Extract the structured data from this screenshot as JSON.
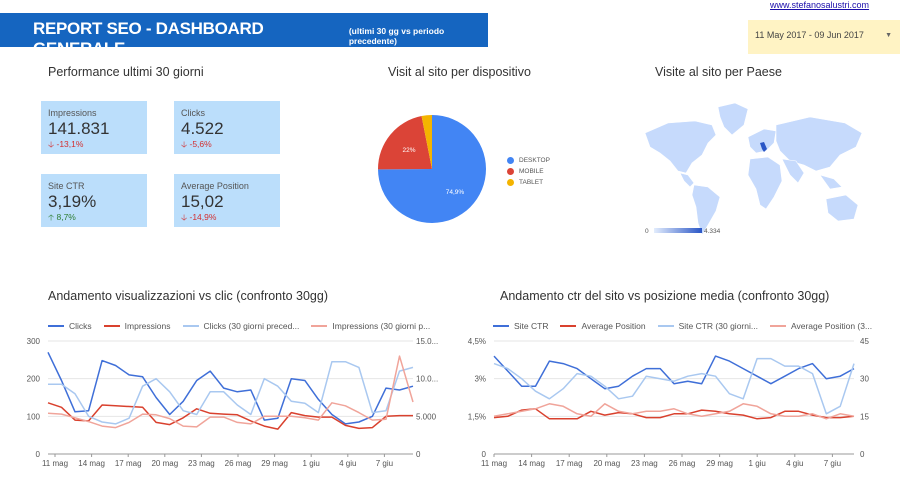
{
  "header": {
    "title": "REPORT SEO - DASHBOARD GENERALE",
    "subtitle": "(ultimi 30 gg vs periodo precedente)"
  },
  "site_link": "www.stefanosalustri.com",
  "date_range": "11 May 2017 - 09 Jun 2017",
  "sections": {
    "performance": "Performance ultimi 30 giorni",
    "device": "Visit al sito per dispositivo",
    "country": "Visite al sito per Paese",
    "trend1": "Andamento visualizzazioni vs clic (confronto 30gg)",
    "trend2": "Andamento ctr del sito vs posizione media (confronto 30gg)"
  },
  "scorecards": [
    {
      "label": "Impressions",
      "value": "141.831",
      "change": "-13,1%",
      "trend": "down"
    },
    {
      "label": "Clicks",
      "value": "4.522",
      "change": "-5,6%",
      "trend": "down"
    },
    {
      "label": "Site CTR",
      "value": "3,19%",
      "change": "8,7%",
      "trend": "up"
    },
    {
      "label": "Average Position",
      "value": "15,02",
      "change": "-14,9%",
      "trend": "down"
    }
  ],
  "colors": {
    "header": "#1565c0",
    "card": "#bbdefb",
    "blue": "#3f6fd8",
    "red": "#d9412e",
    "light_blue": "#a9c8f0",
    "light_red": "#f0a49a",
    "yellow": "#f4b400"
  },
  "pie": {
    "chart_data": {
      "type": "pie",
      "slices": [
        {
          "label": "DESKTOP",
          "value": 74.9,
          "display": "74,9%",
          "color": "#4285f4"
        },
        {
          "label": "MOBILE",
          "value": 22,
          "display": "22%",
          "color": "#db4437"
        },
        {
          "label": "TABLET",
          "value": 3.1,
          "display": "",
          "color": "#f4b400"
        }
      ]
    }
  },
  "map": {
    "scale_min": "0",
    "scale_max": "4.334"
  },
  "trend1": {
    "chart_data": {
      "type": "line",
      "x_ticks": [
        "11 mag",
        "14 mag",
        "17 mag",
        "20 mag",
        "23 mag",
        "26 mag",
        "29 mag",
        "1 giu",
        "4 giu",
        "7 giu"
      ],
      "y_left_ticks": [
        "300",
        "200",
        "100",
        "0"
      ],
      "y_right_ticks": [
        "15.0...",
        "10.0...",
        "5.000",
        "0"
      ],
      "ylim_left": [
        0,
        300
      ],
      "ylim_right": [
        0,
        15000
      ],
      "series": [
        {
          "name": "Clicks",
          "axis": "left",
          "color": "#3f6fd8",
          "dash": false,
          "values": [
            270,
            195,
            112,
            115,
            248,
            235,
            210,
            205,
            150,
            105,
            140,
            195,
            220,
            175,
            165,
            170,
            90,
            95,
            200,
            195,
            145,
            105,
            80,
            85,
            100,
            175,
            170,
            180
          ]
        },
        {
          "name": "Impressions",
          "axis": "right",
          "color": "#d9412e",
          "dash": false,
          "values": [
            6800,
            6200,
            4500,
            4400,
            6500,
            6400,
            6300,
            6200,
            4200,
            3900,
            4800,
            6000,
            5400,
            5300,
            5200,
            4400,
            3700,
            3300,
            5500,
            5100,
            4900,
            4900,
            3800,
            3400,
            3500,
            5000,
            5100,
            5100
          ]
        },
        {
          "name": "Clicks (30 giorni preced...",
          "axis": "left",
          "color": "#a9c8f0",
          "dash": false,
          "values": [
            185,
            185,
            160,
            100,
            85,
            80,
            95,
            180,
            200,
            165,
            115,
            105,
            165,
            165,
            130,
            105,
            200,
            180,
            140,
            135,
            110,
            245,
            245,
            230,
            110,
            115,
            220,
            230
          ]
        },
        {
          "name": "Impressions (30 giorni p...",
          "axis": "right",
          "color": "#f0a49a",
          "dash": false,
          "values": [
            5400,
            5300,
            4800,
            4300,
            3700,
            3500,
            4200,
            5300,
            5200,
            4700,
            3700,
            3600,
            4900,
            4900,
            4200,
            4000,
            5000,
            5000,
            5000,
            4800,
            4500,
            6800,
            6400,
            5500,
            4500,
            4600,
            13000,
            6900
          ]
        }
      ]
    }
  },
  "trend2": {
    "chart_data": {
      "type": "line",
      "x_ticks": [
        "11 mag",
        "14 mag",
        "17 mag",
        "20 mag",
        "23 mag",
        "26 mag",
        "29 mag",
        "1 giu",
        "4 giu",
        "7 giu"
      ],
      "y_left_ticks": [
        "4,5%",
        "3%",
        "1,5%",
        "0"
      ],
      "y_right_ticks": [
        "45",
        "30",
        "15",
        "0"
      ],
      "ylim_left": [
        0,
        4.5
      ],
      "ylim_right": [
        0,
        45
      ],
      "series": [
        {
          "name": "Site CTR",
          "axis": "left",
          "color": "#3f6fd8",
          "dash": false,
          "values": [
            3.9,
            3.3,
            2.7,
            2.7,
            3.7,
            3.6,
            3.4,
            3.0,
            2.6,
            2.7,
            3.1,
            3.4,
            3.4,
            2.8,
            2.9,
            2.8,
            3.9,
            3.7,
            3.4,
            3.1,
            2.8,
            3.1,
            3.4,
            3.6,
            3.0,
            3.1,
            3.4
          ]
        },
        {
          "name": "Average Position",
          "axis": "left",
          "color": "#d9412e",
          "dash": false,
          "values": [
            1.45,
            1.5,
            1.75,
            1.8,
            1.4,
            1.4,
            1.4,
            1.7,
            1.55,
            1.65,
            1.6,
            1.45,
            1.45,
            1.6,
            1.6,
            1.75,
            1.7,
            1.6,
            1.55,
            1.4,
            1.45,
            1.7,
            1.7,
            1.55,
            1.45,
            1.45,
            1.5
          ]
        },
        {
          "name": "Site CTR (30 giorni...",
          "axis": "left",
          "color": "#a9c8f0",
          "dash": false,
          "values": [
            3.6,
            3.4,
            3.0,
            2.5,
            2.2,
            2.6,
            3.2,
            3.1,
            2.7,
            2.2,
            2.3,
            3.1,
            3.0,
            2.9,
            3.1,
            3.2,
            3.1,
            2.4,
            2.2,
            3.8,
            3.8,
            3.5,
            3.5,
            3.2,
            1.6,
            1.9,
            3.6
          ]
        },
        {
          "name": "Average Position (3...",
          "axis": "left",
          "color": "#f0a49a",
          "dash": false,
          "values": [
            1.5,
            1.6,
            1.7,
            1.8,
            2.0,
            1.9,
            1.6,
            1.5,
            2.0,
            1.7,
            1.6,
            1.7,
            1.7,
            1.8,
            1.6,
            1.5,
            1.6,
            1.7,
            2.0,
            1.9,
            1.6,
            1.5,
            1.5,
            1.6,
            1.4,
            1.6,
            1.5
          ]
        }
      ]
    }
  }
}
